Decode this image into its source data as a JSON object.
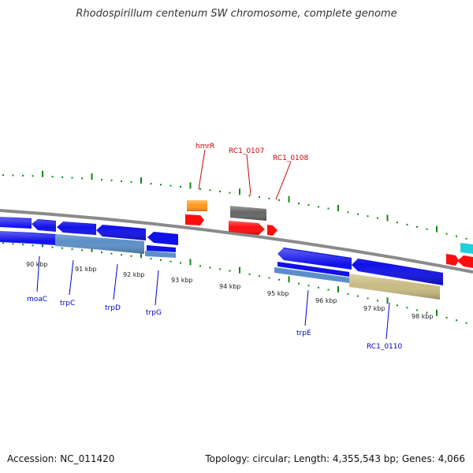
{
  "title": "Rhodospirillum centenum SW chromosome, complete genome",
  "footer": {
    "accession": "Accession: NC_011420",
    "summary": "Topology: circular; Length: 4,355,543 bp; Genes: 4,066"
  },
  "colors": {
    "blue": "#1010e8",
    "steel": "#5b8fc8",
    "khaki": "#c8bb82",
    "gray": "#666666",
    "orange": "#ff9a1c",
    "red": "#ff0d0d",
    "cyan": "#20d0d8",
    "backbone": "#8a8a8a",
    "tick": "#118811",
    "label_upper": "#cc0000",
    "label_lower": "#0000cc"
  },
  "ticks": [
    "90 kbp",
    "91 kbp",
    "92 kbp",
    "93 kbp",
    "94 kbp",
    "95 kbp",
    "96 kbp",
    "97 kbp",
    "98 kbp"
  ],
  "gene_labels_upper": [
    "hmrR",
    "RC1_0107",
    "RC1_0108"
  ],
  "gene_labels_lower": [
    "moaC",
    "trpC",
    "trpD",
    "trpG",
    "trpE",
    "RC1_0110"
  ]
}
